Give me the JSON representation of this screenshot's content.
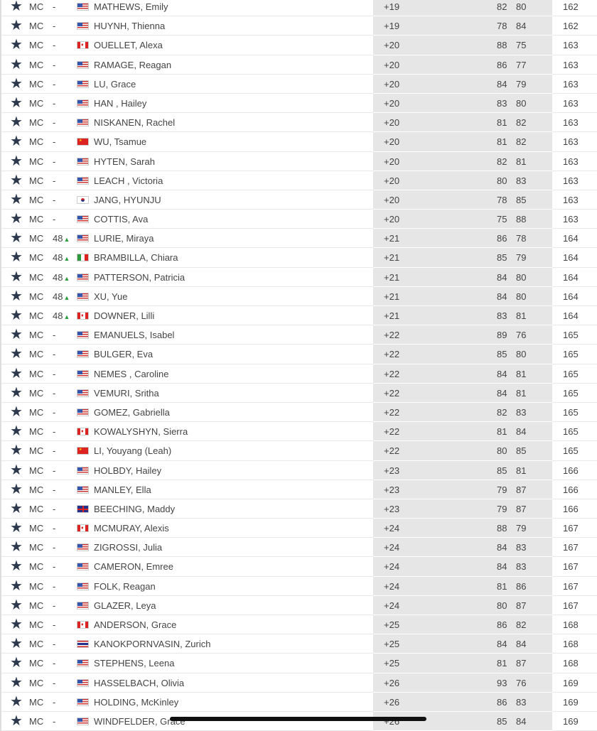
{
  "leaderboard": {
    "rows": [
      [
        "MC",
        "-",
        "us",
        "MATHEWS, Emily",
        "+19",
        "82",
        "80",
        "162"
      ],
      [
        "MC",
        "-",
        "us",
        "HUYNH, Thienna",
        "+19",
        "78",
        "84",
        "162"
      ],
      [
        "MC",
        "-",
        "ca",
        "OUELLET, Alexa",
        "+20",
        "88",
        "75",
        "163"
      ],
      [
        "MC",
        "-",
        "us",
        "RAMAGE, Reagan",
        "+20",
        "86",
        "77",
        "163"
      ],
      [
        "MC",
        "-",
        "us",
        "LU, Grace",
        "+20",
        "84",
        "79",
        "163"
      ],
      [
        "MC",
        "-",
        "us",
        "HAN , Hailey",
        "+20",
        "83",
        "80",
        "163"
      ],
      [
        "MC",
        "-",
        "us",
        "NISKANEN, Rachel",
        "+20",
        "81",
        "82",
        "163"
      ],
      [
        "MC",
        "-",
        "cn",
        "WU, Tsamue",
        "+20",
        "81",
        "82",
        "163"
      ],
      [
        "MC",
        "-",
        "us",
        "HYTEN, Sarah",
        "+20",
        "82",
        "81",
        "163"
      ],
      [
        "MC",
        "-",
        "us",
        "LEACH , Victoria",
        "+20",
        "80",
        "83",
        "163"
      ],
      [
        "MC",
        "-",
        "kr",
        "JANG, HYUNJU",
        "+20",
        "78",
        "85",
        "163"
      ],
      [
        "MC",
        "-",
        "us",
        "COTTIS, Ava",
        "+20",
        "75",
        "88",
        "163"
      ],
      [
        "MC",
        "48",
        "us",
        "LURIE, Miraya",
        "+21",
        "86",
        "78",
        "164"
      ],
      [
        "MC",
        "48",
        "it",
        "BRAMBILLA, Chiara",
        "+21",
        "85",
        "79",
        "164"
      ],
      [
        "MC",
        "48",
        "us",
        "PATTERSON, Patricia",
        "+21",
        "84",
        "80",
        "164"
      ],
      [
        "MC",
        "48",
        "us",
        "XU, Yue",
        "+21",
        "84",
        "80",
        "164"
      ],
      [
        "MC",
        "48",
        "ca",
        "DOWNER, Lilli",
        "+21",
        "83",
        "81",
        "164"
      ],
      [
        "MC",
        "-",
        "us",
        "EMANUELS, Isabel",
        "+22",
        "89",
        "76",
        "165"
      ],
      [
        "MC",
        "-",
        "us",
        "BULGER, Eva",
        "+22",
        "85",
        "80",
        "165"
      ],
      [
        "MC",
        "-",
        "us",
        "NEMES , Caroline",
        "+22",
        "84",
        "81",
        "165"
      ],
      [
        "MC",
        "-",
        "us",
        "VEMURI, Sritha",
        "+22",
        "84",
        "81",
        "165"
      ],
      [
        "MC",
        "-",
        "us",
        "GOMEZ, Gabriella",
        "+22",
        "82",
        "83",
        "165"
      ],
      [
        "MC",
        "-",
        "ca",
        "KOWALYSHYN, Sierra",
        "+22",
        "81",
        "84",
        "165"
      ],
      [
        "MC",
        "-",
        "cn",
        "LI, Youyang (Leah)",
        "+22",
        "80",
        "85",
        "165"
      ],
      [
        "MC",
        "-",
        "us",
        "HOLBDY, Hailey",
        "+23",
        "85",
        "81",
        "166"
      ],
      [
        "MC",
        "-",
        "us",
        "MANLEY, Ella",
        "+23",
        "79",
        "87",
        "166"
      ],
      [
        "MC",
        "-",
        "gb",
        "BEECHING, Maddy",
        "+23",
        "79",
        "87",
        "166"
      ],
      [
        "MC",
        "-",
        "ca",
        "MCMURAY, Alexis",
        "+24",
        "88",
        "79",
        "167"
      ],
      [
        "MC",
        "-",
        "us",
        "ZIGROSSI, Julia",
        "+24",
        "84",
        "83",
        "167"
      ],
      [
        "MC",
        "-",
        "us",
        "CAMERON, Emree",
        "+24",
        "84",
        "83",
        "167"
      ],
      [
        "MC",
        "-",
        "us",
        "FOLK, Reagan",
        "+24",
        "81",
        "86",
        "167"
      ],
      [
        "MC",
        "-",
        "us",
        "GLAZER, Leya",
        "+24",
        "80",
        "87",
        "167"
      ],
      [
        "MC",
        "-",
        "ca",
        "ANDERSON, Grace",
        "+25",
        "86",
        "82",
        "168"
      ],
      [
        "MC",
        "-",
        "th",
        "KANOKPORNVASIN, Zurich",
        "+25",
        "84",
        "84",
        "168"
      ],
      [
        "MC",
        "-",
        "us",
        "STEPHENS, Leena",
        "+25",
        "81",
        "87",
        "168"
      ],
      [
        "MC",
        "-",
        "us",
        "HASSELBACH, Olivia",
        "+26",
        "93",
        "76",
        "169"
      ],
      [
        "MC",
        "-",
        "us",
        "HOLDING, McKinley",
        "+26",
        "86",
        "83",
        "169"
      ],
      [
        "MC",
        "-",
        "us",
        "WINDFELDER, Grace",
        "+26",
        "85",
        "84",
        "169"
      ]
    ]
  },
  "icons": {
    "favorite": "star-icon",
    "moved_up": "arrow-up-icon"
  },
  "colors": {
    "star": "#2d3a4e",
    "arrow_up": "#2e9e3e",
    "score_band": "#e6e6e6"
  }
}
